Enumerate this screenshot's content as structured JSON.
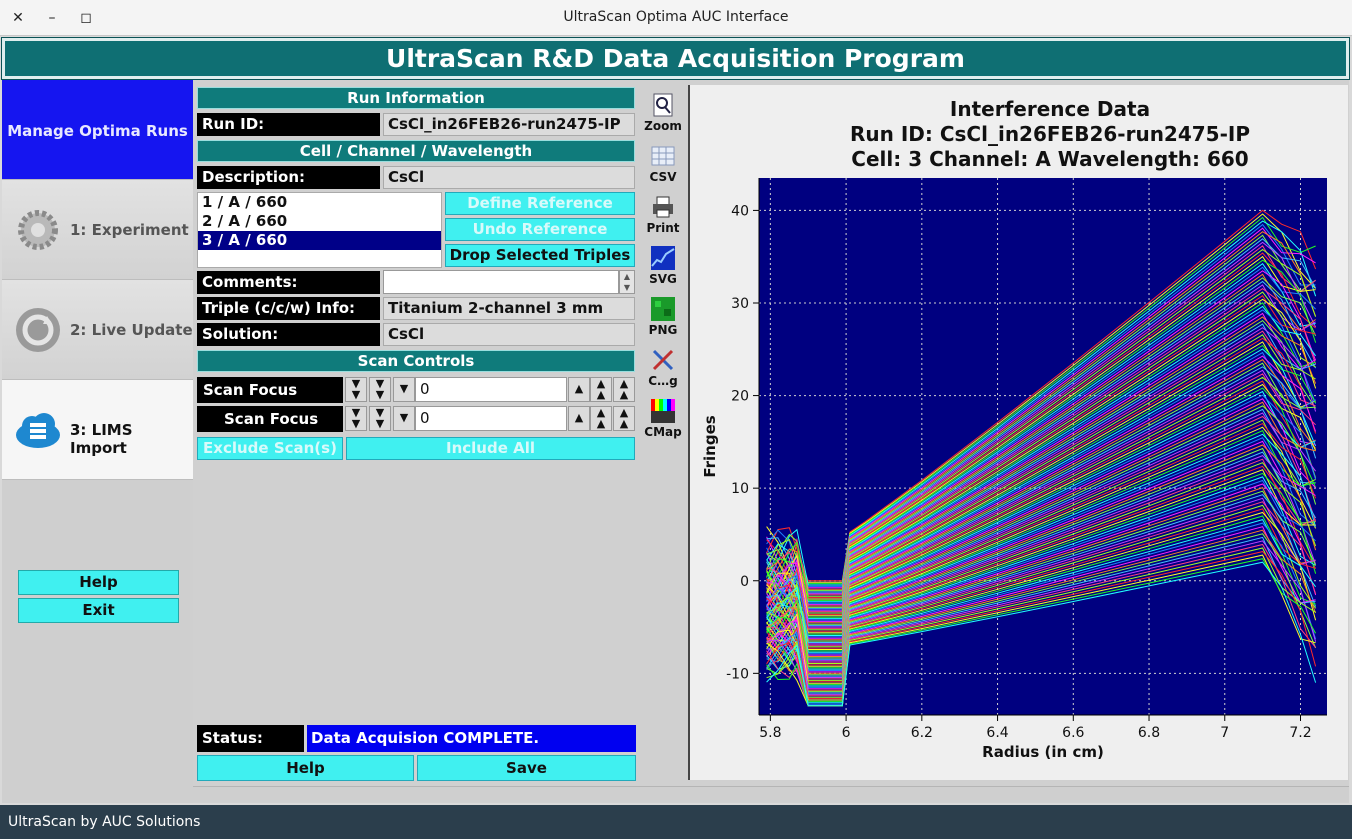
{
  "window": {
    "title": "UltraScan Optima AUC Interface",
    "close": "✕",
    "minimize": "–",
    "maximize": "◻"
  },
  "banner": "UltraScan R&D Data Acquisition Program",
  "sidebar": {
    "manage": "Manage Optima Runs",
    "items": [
      {
        "label": "1: Experiment",
        "icon": "gear-icon"
      },
      {
        "label": "2: Live Update",
        "icon": "refresh-icon"
      },
      {
        "label": "3: LIMS Import",
        "icon": "cloud-database-icon"
      }
    ],
    "help": "Help",
    "exit": "Exit"
  },
  "form": {
    "run_info_header": "Run Information",
    "run_id_label": "Run ID:",
    "run_id_value": "CsCl_in26FEB26-run2475-IP",
    "ccw_header": "Cell / Channel / Wavelength",
    "description_label": "Description:",
    "description_value": "CsCl",
    "triples": [
      "1 / A / 660",
      "2 / A / 660",
      "3 / A / 660"
    ],
    "selected_triple": 2,
    "define_ref": "Define Reference Scans",
    "undo_ref": "Undo Reference Scans",
    "drop_triples": "Drop Selected Triples",
    "comments_label": "Comments:",
    "comments_value": "",
    "triple_info_label": "Triple (c/c/w) Info:",
    "triple_info_value": "Titanium 2-channel 3 mm",
    "solution_label": "Solution:",
    "solution_value": "CsCl",
    "scan_controls_header": "Scan Controls",
    "focus_from_label": "Scan Focus from:",
    "focus_from_value": "0",
    "focus_to_label": "Scan Focus to:",
    "focus_to_value": "0",
    "exclude": "Exclude Scan(s)",
    "include_all": "Include All",
    "status_label": "Status:",
    "status_value": "Data Acquision COMPLETE.",
    "help": "Help",
    "save": "Save"
  },
  "tools": [
    {
      "label": "Zoom",
      "icon": "zoom-icon"
    },
    {
      "label": "CSV",
      "icon": "csv-icon"
    },
    {
      "label": "Print",
      "icon": "print-icon"
    },
    {
      "label": "SVG",
      "icon": "svg-icon"
    },
    {
      "label": "PNG",
      "icon": "png-icon"
    },
    {
      "label": "C…g",
      "icon": "config-icon"
    },
    {
      "label": "CMap",
      "icon": "colormap-icon"
    }
  ],
  "chart_data": {
    "type": "line",
    "title_lines": [
      "Interference Data",
      "Run ID: CsCl_in26FEB26-run2475-IP",
      "Cell: 3  Channel: A  Wavelength: 660"
    ],
    "xlabel": "Radius (in cm)",
    "ylabel": "Fringes",
    "xlim": [
      5.77,
      7.27
    ],
    "ylim": [
      -14.5,
      43.5
    ],
    "x_ticks": [
      "5.8",
      "6",
      "6.2",
      "6.4",
      "6.6",
      "6.8",
      "7",
      "7.2"
    ],
    "y_ticks": [
      "-10",
      "0",
      "10",
      "20",
      "30",
      "40"
    ],
    "grid": true,
    "background": "#000080",
    "series_count": 100,
    "representative_series": [
      {
        "x": [
          5.8,
          5.9,
          6.0,
          6.4,
          6.8,
          7.1,
          7.2
        ],
        "y": [
          -2,
          -5,
          4,
          17,
          29,
          41,
          35
        ]
      },
      {
        "x": [
          5.8,
          5.9,
          6.0,
          6.4,
          6.8,
          7.1,
          7.2
        ],
        "y": [
          0,
          -3,
          0,
          10,
          22,
          33,
          28
        ]
      },
      {
        "x": [
          5.8,
          5.9,
          6.0,
          6.4,
          6.8,
          7.1,
          7.2
        ],
        "y": [
          -4,
          -12,
          -9,
          0,
          9,
          20,
          12
        ]
      },
      {
        "x": [
          5.8,
          5.9,
          6.0,
          6.4,
          6.8,
          7.1,
          7.2
        ],
        "y": [
          2,
          -1,
          -3,
          -2,
          0,
          3,
          -4
        ]
      }
    ]
  },
  "footer": "UltraScan by AUC Solutions"
}
